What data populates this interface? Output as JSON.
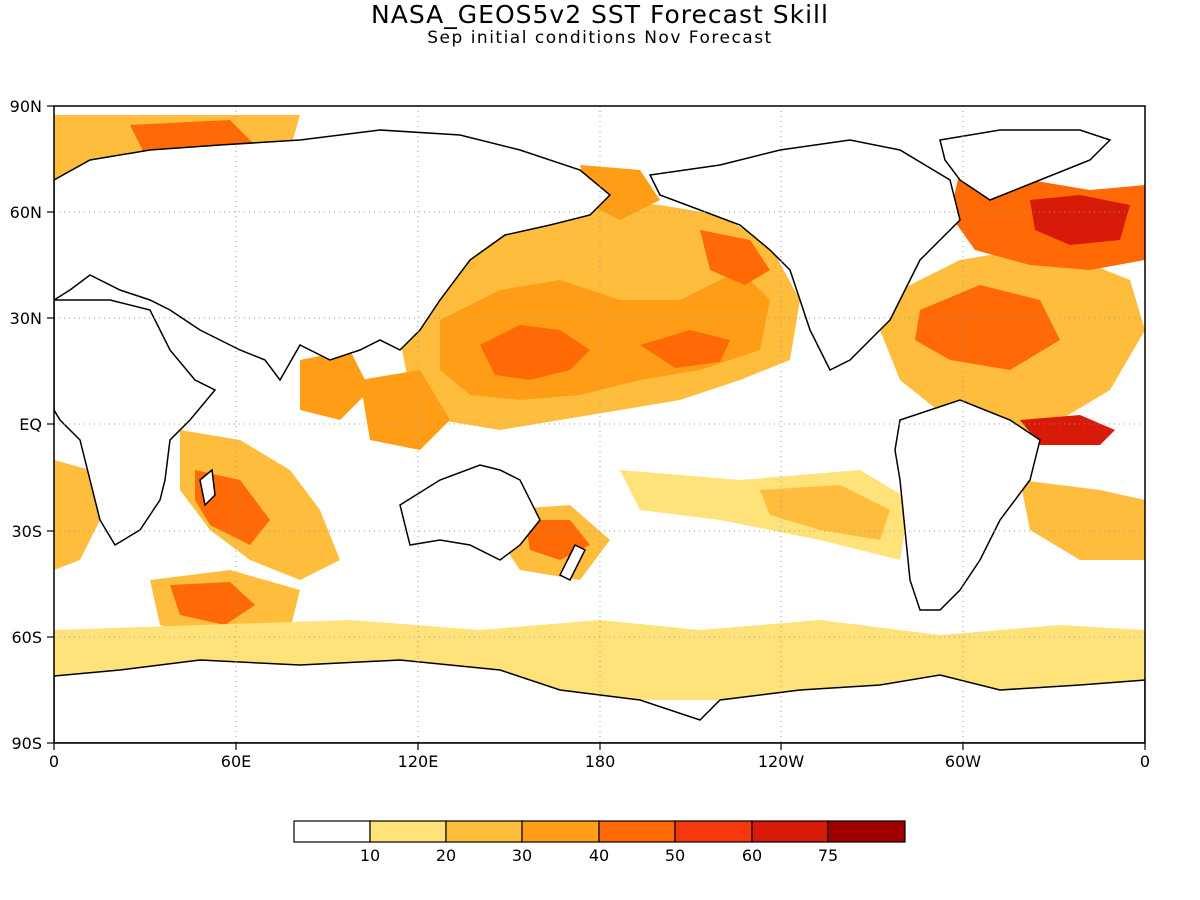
{
  "title": "NASA_GEOS5v2 SST Forecast Skill",
  "subtitle": "Sep initial conditions  Nov Forecast",
  "map": {
    "lat_labels": [
      "90N",
      "60N",
      "30N",
      "EQ",
      "30S",
      "60S",
      "90S"
    ],
    "lon_labels": [
      "0",
      "60E",
      "120E",
      "180",
      "120W",
      "60W",
      "0"
    ],
    "grid": "dotted",
    "projection": "equirectangular",
    "lon_range": [
      0,
      360
    ],
    "lat_range": [
      -90,
      90
    ]
  },
  "colorbar": {
    "levels": [
      "10",
      "20",
      "30",
      "40",
      "50",
      "60",
      "75"
    ],
    "colors": [
      "#ffffff",
      "#ffe27a",
      "#ffbd3d",
      "#ff9e16",
      "#ff6a06",
      "#f5380d",
      "#d81a08",
      "#a00000"
    ]
  },
  "chart_data": {
    "type": "heatmap",
    "title": "NASA_GEOS5v2 SST Forecast Skill",
    "subtitle": "Sep initial conditions  Nov Forecast",
    "variable": "SST Forecast Skill",
    "x_range": [
      0,
      360
    ],
    "y_range": [
      -90,
      90
    ],
    "levels": [
      10,
      20,
      30,
      40,
      50,
      60,
      75
    ],
    "regions": [
      {
        "lon": 175,
        "lat": 22,
        "level": 3
      },
      {
        "lon": 215,
        "lat": 45,
        "level": 3
      },
      {
        "lon": 335,
        "lat": 58,
        "level": 4
      },
      {
        "lon": 310,
        "lat": 30,
        "level": 3
      },
      {
        "lon": 320,
        "lat": 5,
        "level": 3
      },
      {
        "lon": 55,
        "lat": -25,
        "level": 3
      },
      {
        "lon": 160,
        "lat": -35,
        "level": 3
      },
      {
        "lon": 40,
        "lat": 75,
        "level": 3
      },
      {
        "lon": 60,
        "lat": -48,
        "level": 3
      }
    ]
  }
}
